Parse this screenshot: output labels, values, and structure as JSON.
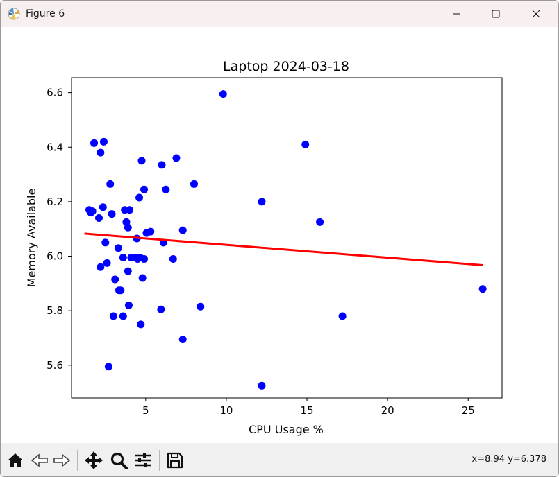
{
  "window": {
    "title": "Figure 6"
  },
  "toolbar": {
    "buttons": [
      "home-icon",
      "back-icon",
      "forward-icon",
      "pan-icon",
      "zoom-icon",
      "configure-subplots-icon",
      "save-icon"
    ],
    "coords_x": "x=8.94",
    "coords_y": "y=6.378"
  },
  "chart_data": {
    "type": "scatter",
    "title": "Laptop 2024-03-18",
    "xlabel": "CPU Usage %",
    "ylabel": "Memory Available",
    "xlim": [
      0.4,
      27.1
    ],
    "ylim": [
      5.48,
      6.655
    ],
    "xticks": [
      5,
      10,
      15,
      20,
      25
    ],
    "yticks": [
      5.6,
      5.8,
      6.0,
      6.2,
      6.4,
      6.6
    ],
    "ytick_labels": [
      "5.6",
      "5.8",
      "6.0",
      "6.2",
      "6.4",
      "6.6"
    ],
    "grid": false,
    "point_color": "#0000ff",
    "line_color": "#ff0000",
    "points": [
      [
        1.5,
        6.17
      ],
      [
        1.6,
        6.16
      ],
      [
        1.7,
        6.165
      ],
      [
        1.8,
        6.415
      ],
      [
        2.1,
        6.14
      ],
      [
        2.2,
        6.38
      ],
      [
        2.2,
        5.96
      ],
      [
        2.35,
        6.18
      ],
      [
        2.4,
        6.42
      ],
      [
        2.5,
        6.05
      ],
      [
        2.6,
        5.975
      ],
      [
        2.7,
        5.595
      ],
      [
        2.8,
        6.265
      ],
      [
        2.9,
        6.155
      ],
      [
        3.0,
        5.78
      ],
      [
        3.1,
        5.915
      ],
      [
        3.3,
        6.03
      ],
      [
        3.35,
        5.875
      ],
      [
        3.45,
        5.875
      ],
      [
        3.6,
        5.995
      ],
      [
        3.6,
        5.78
      ],
      [
        3.7,
        6.17
      ],
      [
        3.8,
        6.125
      ],
      [
        3.9,
        6.105
      ],
      [
        3.9,
        5.945
      ],
      [
        3.95,
        5.82
      ],
      [
        4.0,
        6.17
      ],
      [
        4.1,
        5.995
      ],
      [
        4.35,
        5.995
      ],
      [
        4.45,
        6.065
      ],
      [
        4.5,
        5.99
      ],
      [
        4.6,
        6.215
      ],
      [
        4.65,
        5.995
      ],
      [
        4.7,
        5.75
      ],
      [
        4.75,
        6.35
      ],
      [
        4.8,
        5.92
      ],
      [
        4.9,
        6.245
      ],
      [
        4.9,
        5.99
      ],
      [
        5.05,
        6.085
      ],
      [
        5.3,
        6.09
      ],
      [
        5.95,
        5.805
      ],
      [
        6.0,
        6.335
      ],
      [
        6.1,
        6.05
      ],
      [
        6.25,
        6.245
      ],
      [
        6.7,
        5.99
      ],
      [
        6.9,
        6.36
      ],
      [
        7.3,
        6.095
      ],
      [
        7.3,
        5.695
      ],
      [
        8.0,
        6.265
      ],
      [
        8.4,
        5.815
      ],
      [
        9.8,
        6.595
      ],
      [
        12.2,
        6.2
      ],
      [
        12.2,
        5.525
      ],
      [
        14.9,
        6.41
      ],
      [
        15.8,
        6.125
      ],
      [
        17.2,
        5.78
      ],
      [
        25.9,
        5.88
      ]
    ],
    "trendline": {
      "x": [
        1.2,
        25.9
      ],
      "y": [
        6.083,
        5.967
      ]
    }
  }
}
